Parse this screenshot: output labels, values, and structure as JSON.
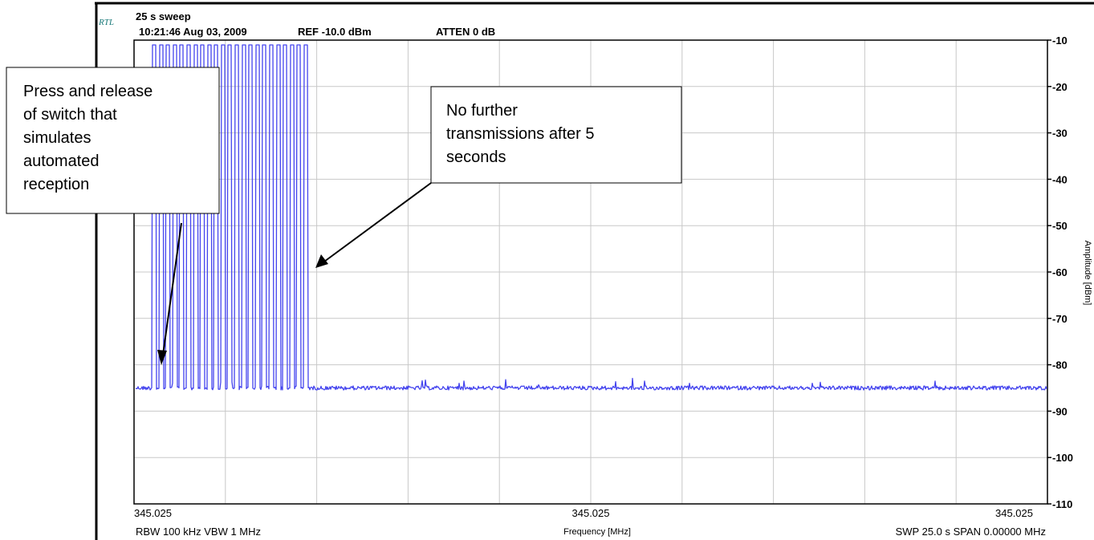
{
  "header": {
    "logo_text": "RTL",
    "sweep_label": "25 s sweep",
    "timestamp": "10:21:46 Aug 03, 2009",
    "ref_level": "REF -10.0 dBm",
    "attenuation": "ATTEN 0 dB"
  },
  "footer": {
    "bandwidths": "RBW 100 kHz  VBW 1 MHz",
    "sweep_span": "SWP 25.0 s  SPAN 0.00000 MHz"
  },
  "annotations": {
    "left_box": [
      "Press and release",
      "of switch that",
      "simulates",
      "automated",
      "reception"
    ],
    "right_box": [
      "No further",
      "transmissions after 5",
      "seconds"
    ]
  },
  "colors": {
    "trace": "#4444ee",
    "grid": "#c8c8c8",
    "frame": "#000000"
  },
  "chart_data": {
    "type": "line",
    "title": "",
    "xlabel": "Frequency [MHz]",
    "ylabel": "Amplitude [dBm]",
    "x_tick_labels": [
      "345.025",
      "345.025",
      "345.025"
    ],
    "y_ticks": [
      -10,
      -20,
      -30,
      -40,
      -50,
      -60,
      -70,
      -80,
      -90,
      -100,
      -110
    ],
    "ylim": [
      -110,
      -10
    ],
    "x_range_s": [
      0,
      25
    ],
    "grid": true,
    "series": [
      {
        "noise_floor_dbm": -85,
        "pulse_peak_dbm": -10,
        "pulse_count": 23,
        "pulse_start_s": 0.55,
        "pulse_end_s": 4.7
      }
    ]
  }
}
